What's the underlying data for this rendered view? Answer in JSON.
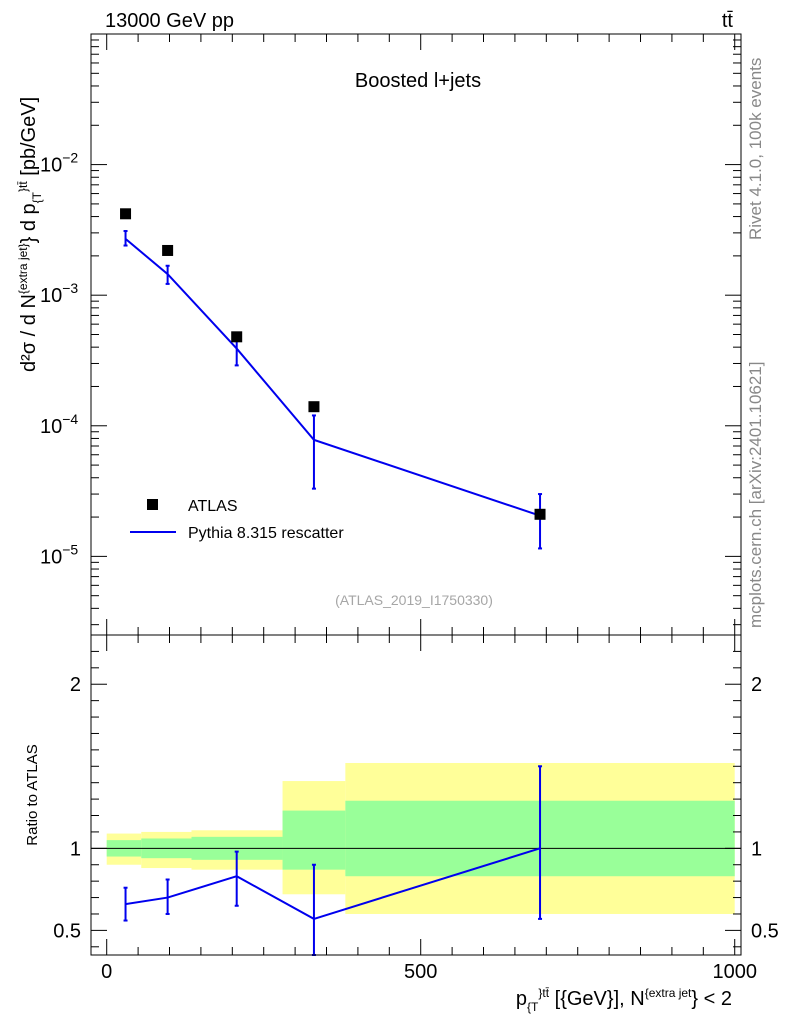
{
  "header": {
    "energy_label": "13000 GeV pp",
    "process_label": "tt̄"
  },
  "side_notes": {
    "rivet": "Rivet 4.1.0,  100k events",
    "mcplots": "mcplots.cern.ch [arXiv:2401.10621]"
  },
  "chart_data": [
    {
      "type": "scatter",
      "panel": "main",
      "title": "Boosted l+jets",
      "analysis_id": "(ATLAS_2019_I1750330)",
      "yscale": "log",
      "ylim": [
        2.5e-06,
        0.1
      ],
      "xlim": [
        -25,
        1010
      ],
      "ylabel": {
        "d2sigma": "d²σ  /  d N",
        "n_sup": "{extra jet}",
        "brace": "} d p",
        "pt_sub": "{T",
        "pt_sup": "}tt̄",
        "unit": " [pb/GeV]"
      },
      "yticks": [
        {
          "value": 1e-05,
          "mant": "10",
          "exp": "−5"
        },
        {
          "value": 0.0001,
          "mant": "10",
          "exp": "−4"
        },
        {
          "value": 0.001,
          "mant": "10",
          "exp": "−3"
        },
        {
          "value": 0.01,
          "mant": "10",
          "exp": "−2"
        }
      ],
      "legend_position": "lower-left",
      "legend": [
        {
          "label": "ATLAS",
          "marker": "square",
          "color": "#000000"
        },
        {
          "label": "Pythia 8.315 rescatter",
          "marker": "line",
          "color": "#0000ee"
        }
      ],
      "series": [
        {
          "name": "ATLAS",
          "color": "#000000",
          "points": [
            {
              "x": 30,
              "y": 0.0042
            },
            {
              "x": 97,
              "y": 0.0022
            },
            {
              "x": 207,
              "y": 0.00048
            },
            {
              "x": 330,
              "y": 0.00014
            },
            {
              "x": 690,
              "y": 2.1e-05
            }
          ]
        },
        {
          "name": "Pythia 8.315 rescatter",
          "color": "#0000ee",
          "points": [
            {
              "x": 30,
              "y": 0.0027,
              "lo": 0.0024,
              "hi": 0.0031
            },
            {
              "x": 97,
              "y": 0.00145,
              "lo": 0.00122,
              "hi": 0.00168
            },
            {
              "x": 207,
              "y": 0.00039,
              "lo": 0.00029,
              "hi": 0.00046
            },
            {
              "x": 330,
              "y": 7.8e-05,
              "lo": 3.3e-05,
              "hi": 0.00012
            },
            {
              "x": 690,
              "y": 2.05e-05,
              "lo": 1.15e-05,
              "hi": 3e-05
            }
          ]
        }
      ]
    },
    {
      "type": "line",
      "panel": "ratio",
      "ylabel": "Ratio to ATLAS",
      "xlabel": {
        "p": "p",
        "sub": "{T",
        "sup": "}tt̄",
        "unit": " [{GeV}], N",
        "n_sup": "{extra jet",
        "tail": "} < 2"
      },
      "ylim": [
        0.35,
        2.3
      ],
      "xlim": [
        -25,
        1010
      ],
      "yticks": [
        0.5,
        1,
        2
      ],
      "ytick_labels": [
        "0.5",
        "1",
        "2"
      ],
      "xticks": [
        0,
        500,
        1000
      ],
      "xtick_labels": [
        "0",
        "500",
        "1000"
      ],
      "reference_line": 1,
      "bands": [
        {
          "x0": 0,
          "x1": 55,
          "yellow": [
            0.9,
            1.09
          ],
          "green": [
            0.95,
            1.05
          ]
        },
        {
          "x0": 55,
          "x1": 135,
          "yellow": [
            0.88,
            1.1
          ],
          "green": [
            0.94,
            1.06
          ]
        },
        {
          "x0": 135,
          "x1": 280,
          "yellow": [
            0.87,
            1.11
          ],
          "green": [
            0.93,
            1.07
          ]
        },
        {
          "x0": 280,
          "x1": 380,
          "yellow": [
            0.72,
            1.41
          ],
          "green": [
            0.87,
            1.23
          ]
        },
        {
          "x0": 380,
          "x1": 1000,
          "yellow": [
            0.6,
            1.52
          ],
          "green": [
            0.83,
            1.29
          ]
        }
      ],
      "band_colors": {
        "yellow": "#ffff99",
        "green": "#99ff99"
      },
      "series": [
        {
          "name": "Pythia 8.315 rescatter",
          "color": "#0000ee",
          "points": [
            {
              "x": 30,
              "y": 0.66,
              "lo": 0.56,
              "hi": 0.76
            },
            {
              "x": 97,
              "y": 0.7,
              "lo": 0.6,
              "hi": 0.81
            },
            {
              "x": 207,
              "y": 0.83,
              "lo": 0.65,
              "hi": 0.98
            },
            {
              "x": 330,
              "y": 0.57,
              "lo": 0.35,
              "hi": 0.9
            },
            {
              "x": 690,
              "y": 1.0,
              "lo": 0.57,
              "hi": 1.5
            }
          ]
        }
      ]
    }
  ]
}
